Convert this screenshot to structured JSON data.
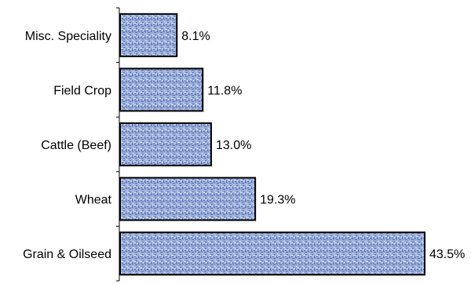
{
  "chart_data": {
    "type": "bar",
    "orientation": "horizontal",
    "categories": [
      "Misc. Speciality",
      "Field Crop",
      "Cattle (Beef)",
      "Wheat",
      "Grain & Oilseed"
    ],
    "values": [
      8.1,
      11.8,
      13.0,
      19.3,
      43.5
    ],
    "value_labels": [
      "8.1%",
      "11.8%",
      "13.0%",
      "19.3%",
      "43.5%"
    ],
    "title": "",
    "xlabel": "",
    "ylabel": "",
    "xlim": [
      0,
      43.5
    ],
    "grid": false,
    "legend": "none",
    "colors": {
      "bar_fill": "#9aaed8",
      "bar_texture_dark": "#5b73b5",
      "bar_texture_light": "#d4def2",
      "bar_border": "#000000",
      "axis": "#000000"
    }
  }
}
